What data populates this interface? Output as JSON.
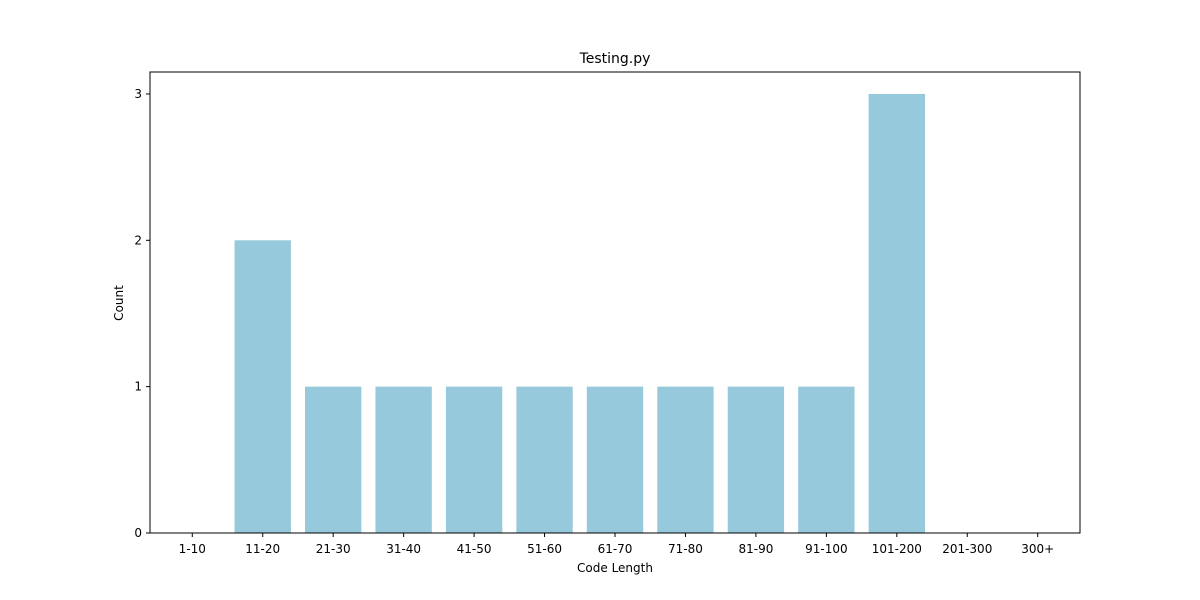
{
  "chart_data": {
    "type": "bar",
    "title": "Testing.py",
    "xlabel": "Code Length",
    "ylabel": "Count",
    "categories": [
      "1-10",
      "11-20",
      "21-30",
      "31-40",
      "41-50",
      "51-60",
      "61-70",
      "71-80",
      "81-90",
      "91-100",
      "101-200",
      "201-300",
      "300+"
    ],
    "values": [
      0,
      2,
      1,
      1,
      1,
      1,
      1,
      1,
      1,
      1,
      3,
      0,
      0
    ],
    "ylim": [
      0,
      3.15
    ],
    "yticks": [
      0,
      1,
      2,
      3
    ],
    "grid": false,
    "bar_color": "#96c9dc"
  }
}
